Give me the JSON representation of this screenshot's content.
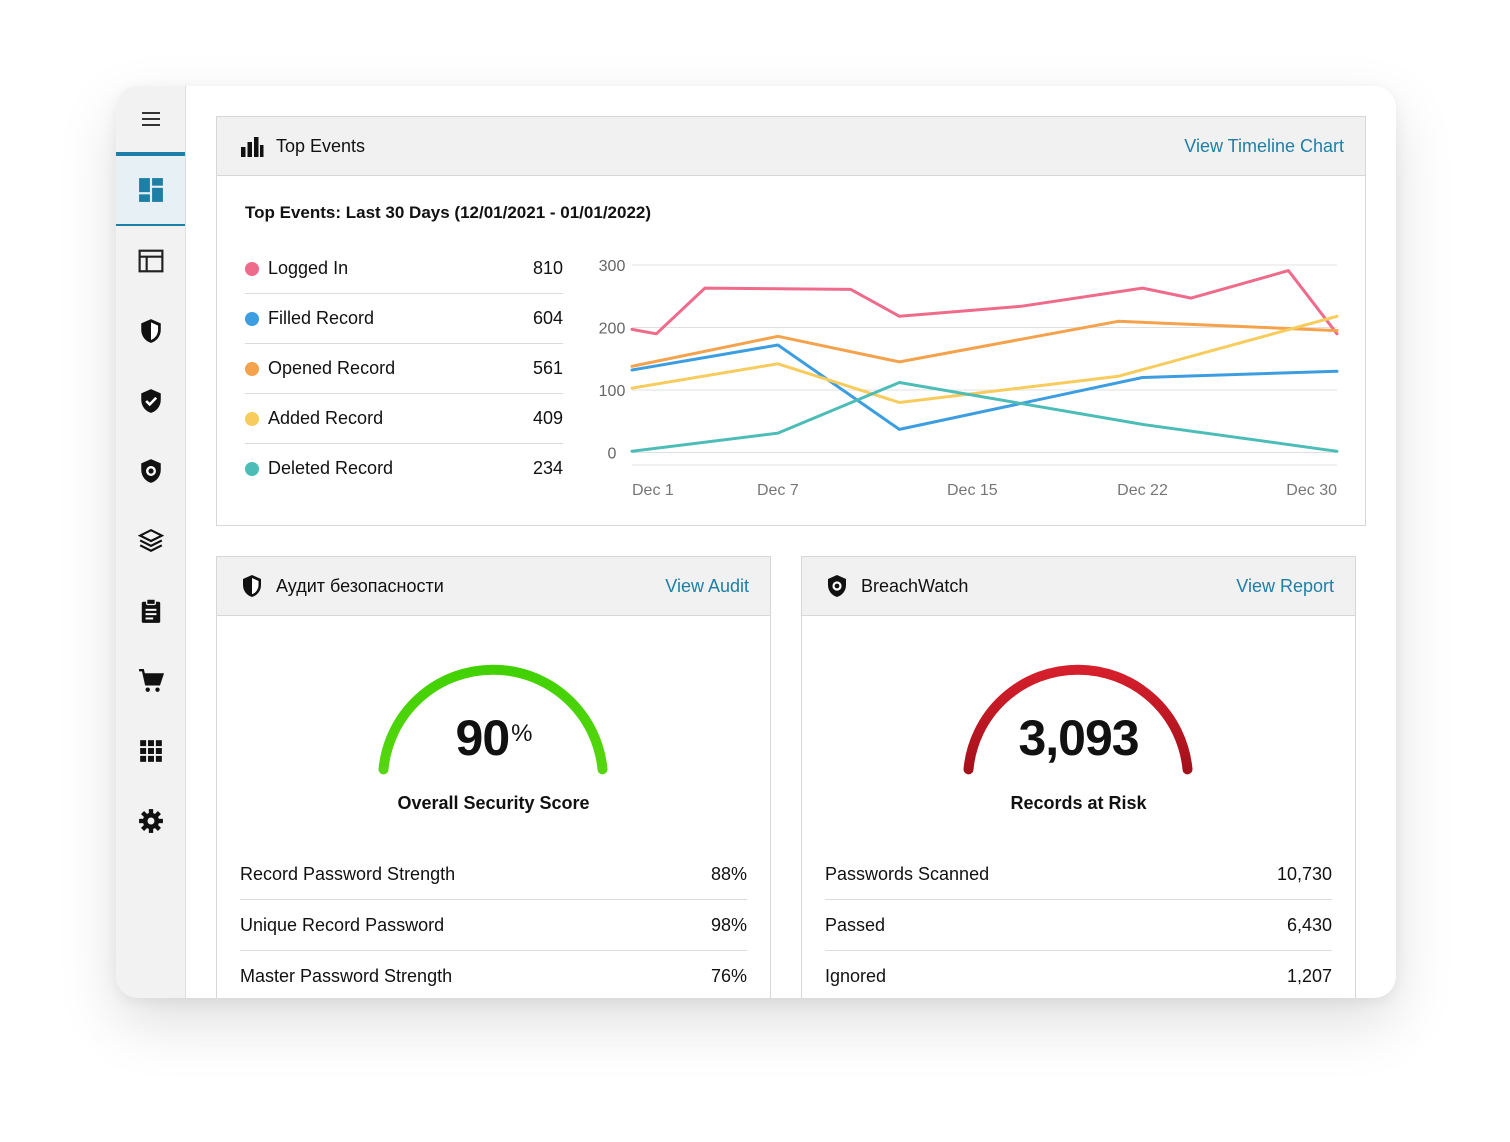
{
  "colors": {
    "accent": "#1e7fa6",
    "logged_in": "#ee6b8b",
    "filled": "#3c9ee0",
    "opened": "#f4a24b",
    "added": "#f7cc5c",
    "deleted": "#4cbdb6",
    "gauge_green": "#42d100",
    "gauge_red": "#d61f2c"
  },
  "sidebar": {
    "items": [
      {
        "icon": "hamburger-menu-icon"
      },
      {
        "icon": "dashboard-icon",
        "active": true
      },
      {
        "icon": "layout-panel-icon"
      },
      {
        "icon": "half-shield-icon"
      },
      {
        "icon": "shield-check-icon"
      },
      {
        "icon": "breachwatch-shield-icon"
      },
      {
        "icon": "layers-icon"
      },
      {
        "icon": "clipboard-icon"
      },
      {
        "icon": "cart-icon"
      },
      {
        "icon": "apps-grid-icon"
      },
      {
        "icon": "gear-icon"
      }
    ]
  },
  "top_events": {
    "header_title": "Top Events",
    "header_link": "View Timeline Chart",
    "chart_title": "Top Events: Last 30 Days (12/01/2021 - 01/01/2022)",
    "legend": [
      {
        "label": "Logged In",
        "count": "810"
      },
      {
        "label": "Filled Record",
        "count": "604"
      },
      {
        "label": "Opened Record",
        "count": "561"
      },
      {
        "label": "Added Record",
        "count": "409"
      },
      {
        "label": "Deleted Record",
        "count": "234"
      }
    ]
  },
  "chart_data": {
    "type": "line",
    "title": "Top Events: Last 30 Days (12/01/2021 - 01/01/2022)",
    "x": [
      1,
      2,
      4,
      7,
      10,
      15,
      18,
      22,
      24,
      27,
      30
    ],
    "x_tick_labels": [
      "Dec 1",
      "Dec 7",
      "Dec 15",
      "Dec 22",
      "Dec 30"
    ],
    "x_tick_values": [
      1,
      7,
      15,
      22,
      30
    ],
    "xlim": [
      1,
      30
    ],
    "y_tick_labels": [
      "300",
      "200",
      "100",
      "0"
    ],
    "y_tick_values": [
      300,
      200,
      100,
      0
    ],
    "ylim": [
      -20,
      300
    ],
    "grid": true,
    "series": [
      {
        "name": "Logged In",
        "color": "#ee6b8b",
        "points": [
          [
            1,
            197
          ],
          [
            2,
            190
          ],
          [
            4,
            263
          ],
          [
            7,
            262
          ],
          [
            10,
            261
          ],
          [
            12,
            218
          ],
          [
            17,
            234
          ],
          [
            22,
            263
          ],
          [
            24,
            247
          ],
          [
            28,
            291
          ],
          [
            30,
            190
          ]
        ]
      },
      {
        "name": "Filled Record",
        "color": "#3c9ee0",
        "points": [
          [
            1,
            132
          ],
          [
            7,
            172
          ],
          [
            12,
            37
          ],
          [
            22,
            120
          ],
          [
            30,
            130
          ]
        ]
      },
      {
        "name": "Opened Record",
        "color": "#f4a24b",
        "points": [
          [
            1,
            138
          ],
          [
            7,
            186
          ],
          [
            12,
            145
          ],
          [
            21,
            210
          ],
          [
            30,
            195
          ]
        ]
      },
      {
        "name": "Added Record",
        "color": "#f7cc5c",
        "points": [
          [
            1,
            103
          ],
          [
            7,
            142
          ],
          [
            12,
            80
          ],
          [
            21,
            122
          ],
          [
            30,
            218
          ]
        ]
      },
      {
        "name": "Deleted Record",
        "color": "#4cbdb6",
        "points": [
          [
            1,
            2
          ],
          [
            7,
            31
          ],
          [
            12,
            112
          ],
          [
            22,
            45
          ],
          [
            30,
            2
          ]
        ]
      }
    ]
  },
  "security_audit": {
    "header_title": "Аудит безопасности",
    "header_link": "View Audit",
    "score_value": "90",
    "score_unit": "%",
    "score_fraction": 0.9,
    "score_label": "Overall Security Score",
    "rows": [
      {
        "label": "Record Password Strength",
        "value": "88%"
      },
      {
        "label": "Unique Record Password",
        "value": "98%"
      },
      {
        "label": "Master Password Strength",
        "value": "76%"
      }
    ]
  },
  "breachwatch": {
    "header_title": "BreachWatch",
    "header_link": "View Report",
    "risk_value": "3,093",
    "risk_label": "Records at Risk",
    "rows": [
      {
        "label": "Passwords Scanned",
        "value": "10,730"
      },
      {
        "label": "Passed",
        "value": "6,430"
      },
      {
        "label": "Ignored",
        "value": "1,207"
      }
    ]
  }
}
